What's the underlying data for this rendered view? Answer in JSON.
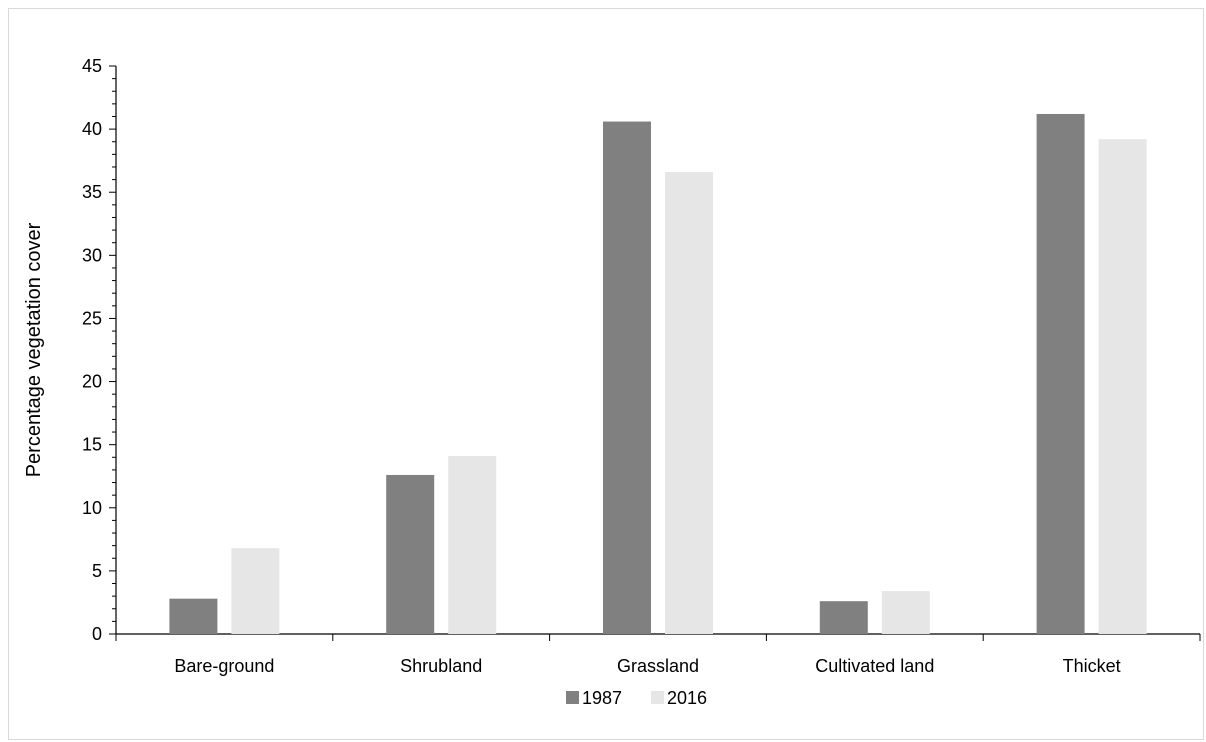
{
  "chart_data": {
    "type": "bar",
    "title": "",
    "xlabel": "",
    "ylabel": "Percentage vegetation cover",
    "categories": [
      "Bare-ground",
      "Shrubland",
      "Grassland",
      "Cultivated land",
      "Thicket"
    ],
    "series": [
      {
        "name": "1987",
        "color": "#808080",
        "values": [
          2.8,
          12.6,
          40.6,
          2.6,
          41.2
        ]
      },
      {
        "name": "2016",
        "color": "#e6e6e6",
        "values": [
          6.8,
          14.1,
          36.6,
          3.4,
          39.2
        ]
      }
    ],
    "ylim": [
      0,
      45
    ],
    "yticks": [
      "0",
      "5",
      "10",
      "15",
      "20",
      "25",
      "30",
      "35",
      "40",
      "45"
    ],
    "grid": false,
    "legend_position": "bottom"
  }
}
